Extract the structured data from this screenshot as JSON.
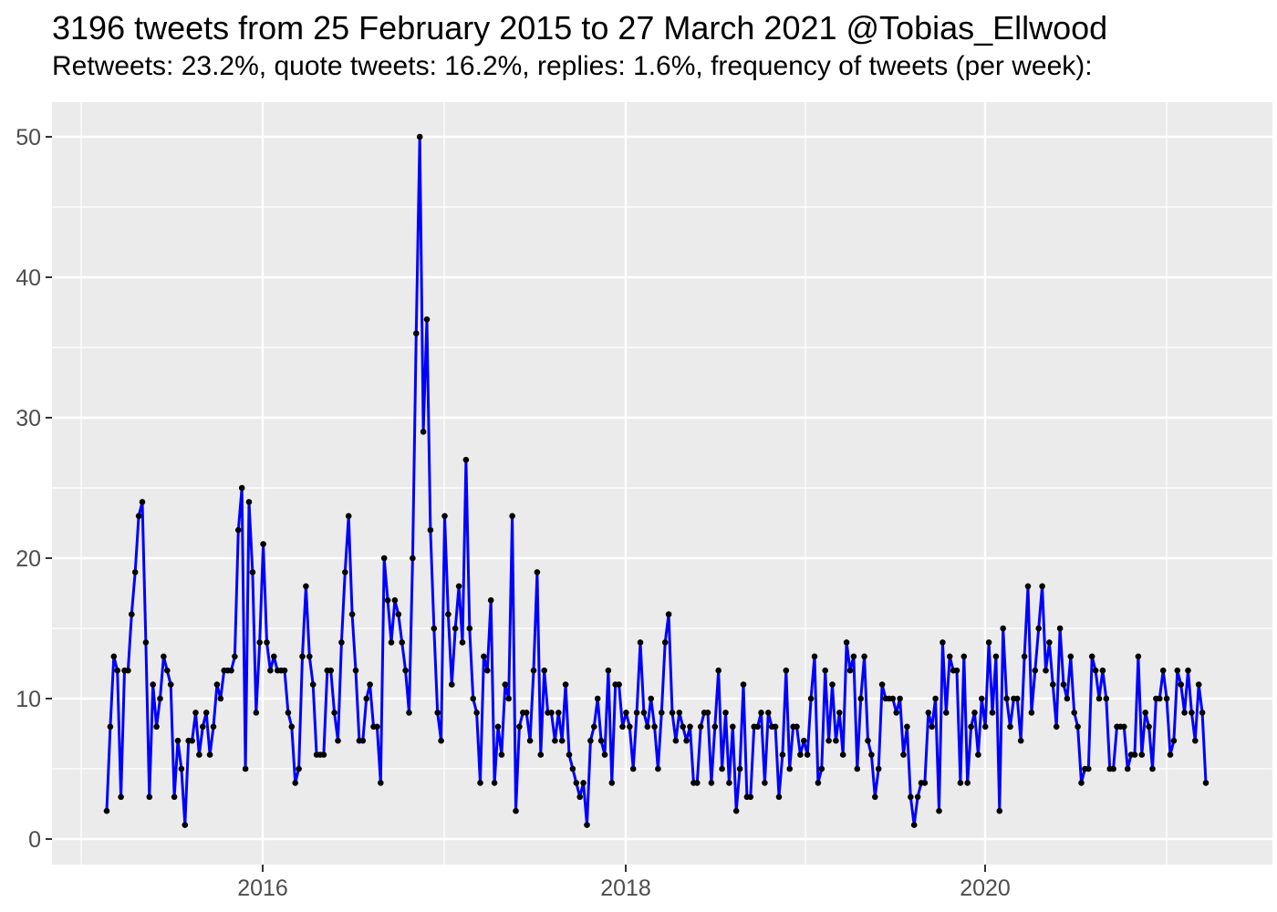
{
  "header": {
    "title": "3196 tweets from 25 February 2015 to 27 March 2021 @Tobias_Ellwood",
    "subtitle": "Retweets: 23.2%, quote tweets: 16.2%, replies: 1.6%, frequency of tweets (per week):"
  },
  "chart_data": {
    "type": "line",
    "title": "3196 tweets from 25 February 2015 to 27 March 2021 @Tobias_Ellwood",
    "subtitle": "Retweets: 23.2%, quote tweets: 16.2%, replies: 1.6%, frequency of tweets (per week):",
    "series_name": "tweets per week",
    "start_label": "25 February 2015",
    "end_label": "27 March 2021",
    "x_tick_labels": [
      "2016",
      "2018",
      "2020"
    ],
    "y_tick_labels": [
      "0",
      "10",
      "20",
      "30",
      "40",
      "50"
    ],
    "ylim": [
      0,
      50
    ],
    "grid": "on",
    "legend": "none",
    "line_color": "#0000FF",
    "point_color": "#000000",
    "panel_color": "#EBEBEB",
    "grid_color": "#FFFFFF",
    "axis_text_color": "#4D4D4D",
    "values": [
      2,
      8,
      13,
      12,
      3,
      12,
      12,
      16,
      19,
      23,
      24,
      14,
      3,
      11,
      8,
      10,
      13,
      12,
      11,
      3,
      7,
      5,
      1,
      7,
      7,
      9,
      6,
      8,
      9,
      6,
      8,
      11,
      10,
      12,
      12,
      12,
      13,
      22,
      25,
      5,
      24,
      19,
      9,
      14,
      21,
      14,
      12,
      13,
      12,
      12,
      12,
      9,
      8,
      4,
      5,
      13,
      18,
      13,
      11,
      6,
      6,
      6,
      12,
      12,
      9,
      7,
      14,
      19,
      23,
      16,
      12,
      7,
      7,
      10,
      11,
      8,
      8,
      4,
      20,
      17,
      14,
      17,
      16,
      14,
      12,
      9,
      20,
      36,
      50,
      29,
      37,
      22,
      15,
      9,
      7,
      23,
      16,
      11,
      15,
      18,
      14,
      27,
      15,
      10,
      9,
      4,
      13,
      12,
      17,
      4,
      8,
      6,
      11,
      10,
      23,
      2,
      8,
      9,
      9,
      7,
      12,
      19,
      6,
      12,
      9,
      9,
      7,
      9,
      7,
      11,
      6,
      5,
      4,
      3,
      4,
      1,
      7,
      8,
      10,
      7,
      6,
      12,
      4,
      11,
      11,
      8,
      9,
      8,
      5,
      9,
      14,
      9,
      8,
      10,
      8,
      5,
      9,
      14,
      16,
      9,
      7,
      9,
      8,
      7,
      8,
      4,
      4,
      8,
      9,
      9,
      4,
      8,
      12,
      5,
      9,
      4,
      8,
      2,
      5,
      11,
      3,
      3,
      8,
      8,
      9,
      4,
      9,
      8,
      8,
      3,
      6,
      12,
      5,
      8,
      8,
      6,
      7,
      6,
      10,
      13,
      4,
      5,
      12,
      7,
      11,
      7,
      9,
      6,
      14,
      12,
      13,
      5,
      10,
      13,
      7,
      6,
      3,
      5,
      11,
      10,
      10,
      10,
      9,
      10,
      6,
      8,
      3,
      1,
      3,
      4,
      4,
      9,
      8,
      10,
      2,
      14,
      9,
      13,
      12,
      12,
      4,
      13,
      4,
      8,
      9,
      6,
      10,
      8,
      14,
      9,
      13,
      2,
      15,
      10,
      8,
      10,
      10,
      7,
      13,
      18,
      9,
      12,
      15,
      18,
      12,
      14,
      11,
      8,
      15,
      11,
      10,
      13,
      9,
      8,
      4,
      5,
      5,
      13,
      12,
      10,
      12,
      10,
      5,
      5,
      8,
      8,
      8,
      5,
      6,
      6,
      13,
      6,
      9,
      8,
      5,
      10,
      10,
      12,
      10,
      6,
      7,
      12,
      11,
      9,
      12,
      9,
      7,
      11,
      9,
      4
    ]
  }
}
